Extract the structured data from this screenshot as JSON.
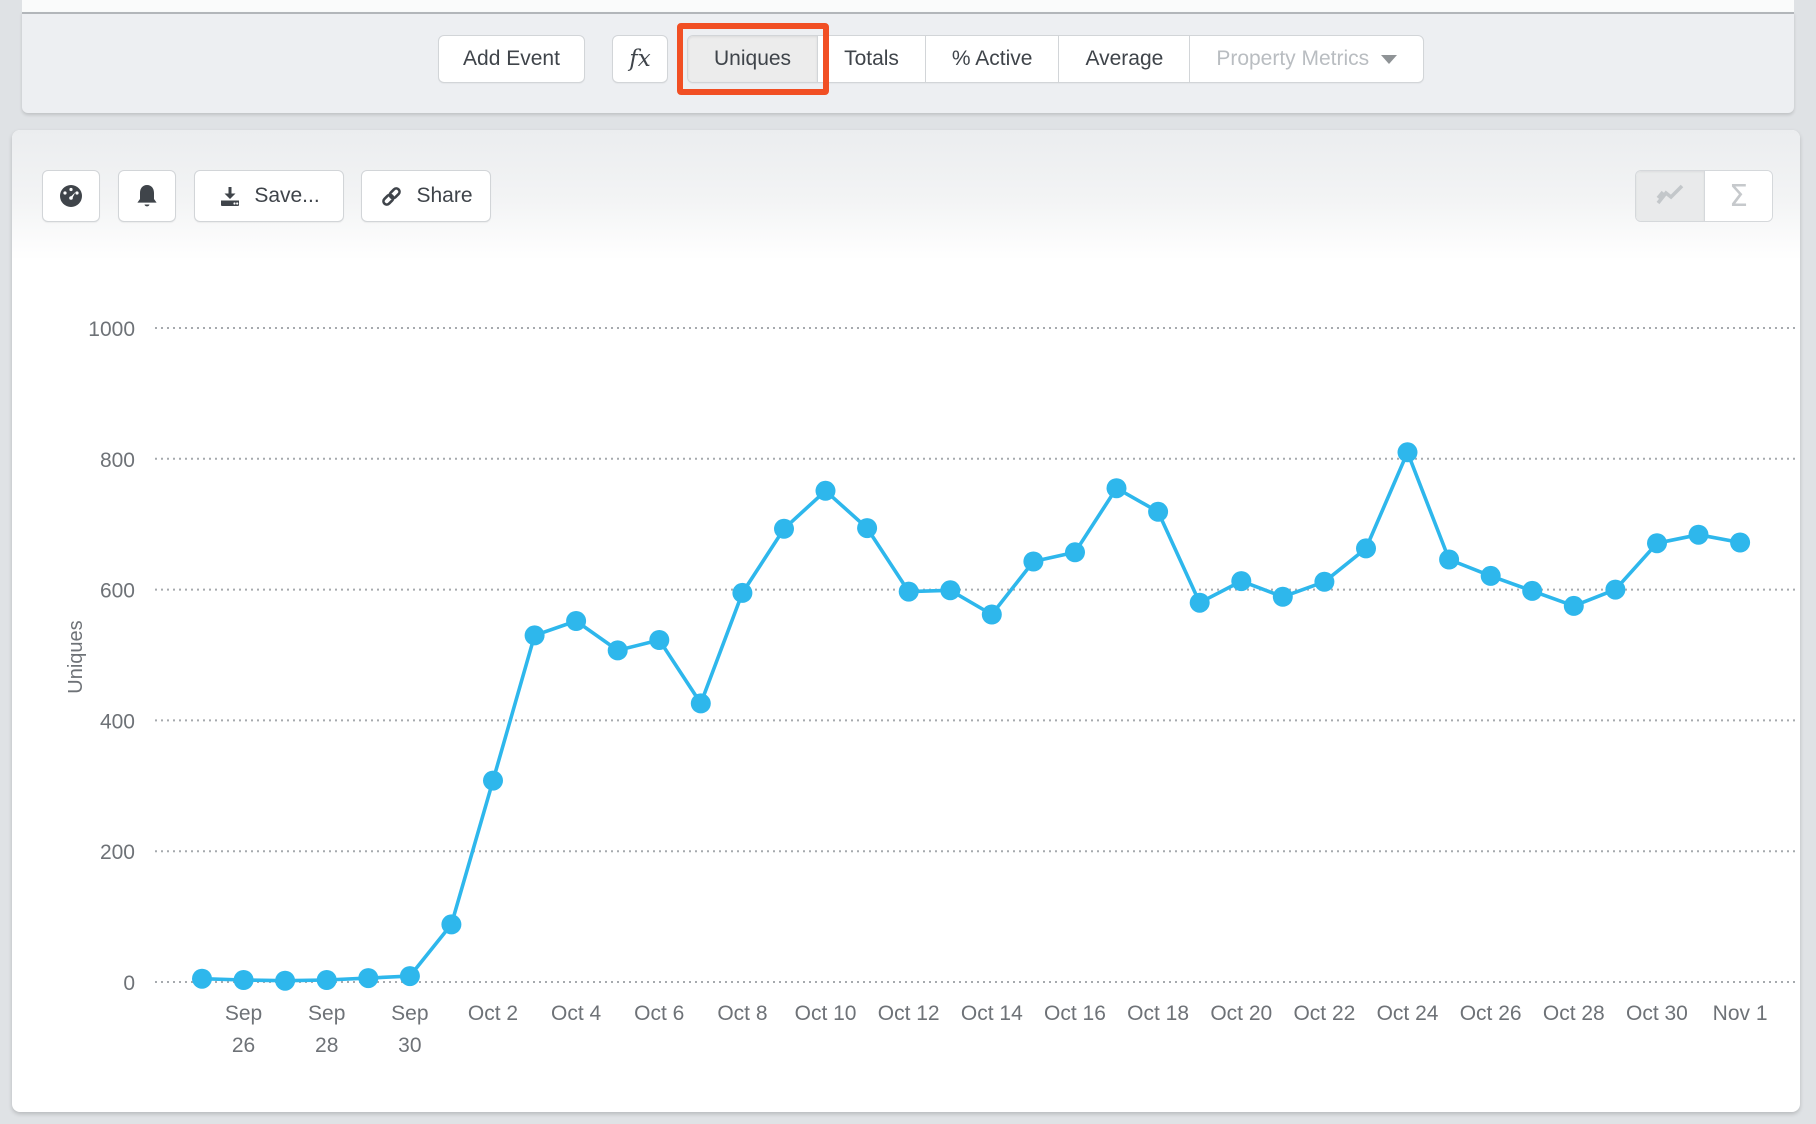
{
  "toolbar": {
    "add_event_label": "Add Event",
    "fx_label": "fx",
    "metric_tabs": [
      {
        "label": "Uniques",
        "selected": true,
        "highlighted": true
      },
      {
        "label": "Totals",
        "selected": false
      },
      {
        "label": "% Active",
        "selected": false
      },
      {
        "label": "Average",
        "selected": false
      },
      {
        "label": "Property Metrics",
        "selected": false,
        "disabled": true,
        "caret": true
      }
    ],
    "highlight_color": "#f14f24"
  },
  "chart_toolbar": {
    "gauge_icon": "speedometer-icon",
    "bell_icon": "bell-icon",
    "save_label": "Save...",
    "share_label": "Share",
    "view_toggle": [
      {
        "icon": "line-chart-icon",
        "selected": true
      },
      {
        "icon": "sigma-icon",
        "label": "Σ",
        "selected": false
      }
    ]
  },
  "chart_data": {
    "type": "line",
    "title": "",
    "xlabel": "",
    "ylabel": "Uniques",
    "line_color": "#2eb7ec",
    "grid_color": "#a6aaae",
    "label_color": "#6e7277",
    "grid_style": "dotted",
    "legend": "none",
    "ylim": [
      0,
      1000
    ],
    "y_ticks": [
      0,
      200,
      400,
      600,
      800,
      1000
    ],
    "categories": [
      "Sep 25",
      "Sep 26",
      "Sep 27",
      "Sep 28",
      "Sep 29",
      "Sep 30",
      "Oct 1",
      "Oct 2",
      "Oct 3",
      "Oct 4",
      "Oct 5",
      "Oct 6",
      "Oct 7",
      "Oct 8",
      "Oct 9",
      "Oct 10",
      "Oct 11",
      "Oct 12",
      "Oct 13",
      "Oct 14",
      "Oct 15",
      "Oct 16",
      "Oct 17",
      "Oct 18",
      "Oct 19",
      "Oct 20",
      "Oct 21",
      "Oct 22",
      "Oct 23",
      "Oct 24",
      "Oct 25",
      "Oct 26",
      "Oct 27",
      "Oct 28",
      "Oct 29",
      "Oct 30",
      "Oct 31",
      "Nov 1"
    ],
    "values": [
      5,
      3,
      2,
      3,
      6,
      9,
      88,
      308,
      530,
      552,
      507,
      523,
      426,
      595,
      693,
      751,
      694,
      597,
      599,
      562,
      643,
      657,
      755,
      719,
      580,
      613,
      589,
      612,
      663,
      810,
      646,
      621,
      598,
      575,
      600,
      671,
      684,
      672
    ],
    "x_tick_start_index": 1,
    "x_tick_every": 2,
    "x_tick_labels": [
      [
        "Sep",
        "26"
      ],
      [
        "Sep",
        "28"
      ],
      [
        "Sep",
        "30"
      ],
      [
        "Oct 2"
      ],
      [
        "Oct 4"
      ],
      [
        "Oct 6"
      ],
      [
        "Oct 8"
      ],
      [
        "Oct 10"
      ],
      [
        "Oct 12"
      ],
      [
        "Oct 14"
      ],
      [
        "Oct 16"
      ],
      [
        "Oct 18"
      ],
      [
        "Oct 20"
      ],
      [
        "Oct 22"
      ],
      [
        "Oct 24"
      ],
      [
        "Oct 26"
      ],
      [
        "Oct 28"
      ],
      [
        "Oct 30"
      ],
      [
        "Nov 1"
      ]
    ]
  }
}
